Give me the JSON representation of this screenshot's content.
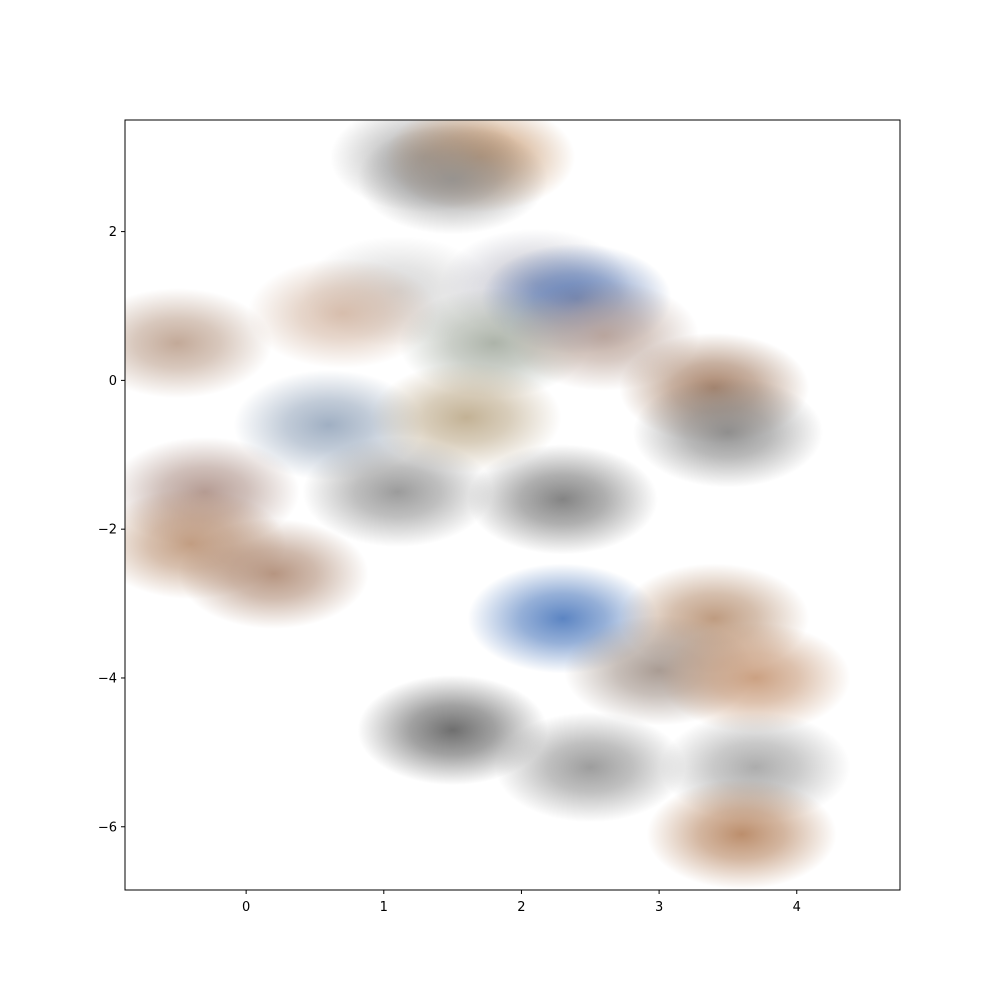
{
  "chart_data": {
    "type": "scatter",
    "title": "",
    "xlabel": "",
    "ylabel": "",
    "xlim": [
      -0.88,
      4.75
    ],
    "ylim": [
      -6.85,
      3.5
    ],
    "grid": false,
    "legend": "none",
    "xticks": [
      0,
      1,
      2,
      3,
      4
    ],
    "xtick_labels": [
      "0",
      "1",
      "2",
      "3",
      "4"
    ],
    "yticks": [
      2,
      0,
      -2,
      -4,
      -6
    ],
    "ytick_labels": [
      "2",
      "0",
      "−2",
      "−4",
      "−6"
    ],
    "marker": "image-thumbnail",
    "points": [
      {
        "x": 1.3,
        "y": 3.0,
        "color": "#9a9a9a"
      },
      {
        "x": 1.7,
        "y": 3.0,
        "color": "#c08a5a"
      },
      {
        "x": 1.5,
        "y": 2.7,
        "color": "#8f8f8f"
      },
      {
        "x": 1.1,
        "y": 1.2,
        "color": "#cfcfcf"
      },
      {
        "x": 2.1,
        "y": 1.3,
        "color": "#b9b9c5"
      },
      {
        "x": 2.4,
        "y": 1.1,
        "color": "#4c6fb0"
      },
      {
        "x": -0.5,
        "y": 0.5,
        "color": "#b89a86"
      },
      {
        "x": 0.7,
        "y": 0.9,
        "color": "#d2b4a0"
      },
      {
        "x": 1.8,
        "y": 0.5,
        "color": "#9ea69a"
      },
      {
        "x": 2.6,
        "y": 0.6,
        "color": "#b59c90"
      },
      {
        "x": 3.4,
        "y": -0.1,
        "color": "#9a6f52"
      },
      {
        "x": 3.5,
        "y": -0.7,
        "color": "#7f7f7f"
      },
      {
        "x": 0.6,
        "y": -0.6,
        "color": "#8fa1b8"
      },
      {
        "x": 1.6,
        "y": -0.5,
        "color": "#b8a482"
      },
      {
        "x": -0.3,
        "y": -1.5,
        "color": "#a88a80"
      },
      {
        "x": 1.1,
        "y": -1.5,
        "color": "#8a8a8a"
      },
      {
        "x": 2.3,
        "y": -1.6,
        "color": "#6e6e6e"
      },
      {
        "x": -0.4,
        "y": -2.2,
        "color": "#b78c6c"
      },
      {
        "x": 0.2,
        "y": -2.6,
        "color": "#a9826a"
      },
      {
        "x": 2.3,
        "y": -3.2,
        "color": "#3f6fb8"
      },
      {
        "x": 3.4,
        "y": -3.2,
        "color": "#b38a6a"
      },
      {
        "x": 3.0,
        "y": -3.9,
        "color": "#9a8a80"
      },
      {
        "x": 3.7,
        "y": -4.0,
        "color": "#c2906c"
      },
      {
        "x": 1.5,
        "y": -4.7,
        "color": "#555555"
      },
      {
        "x": 2.5,
        "y": -5.2,
        "color": "#8c8c8c"
      },
      {
        "x": 3.7,
        "y": -5.2,
        "color": "#9e9e9e"
      },
      {
        "x": 3.6,
        "y": -6.1,
        "color": "#b07a52"
      }
    ]
  }
}
